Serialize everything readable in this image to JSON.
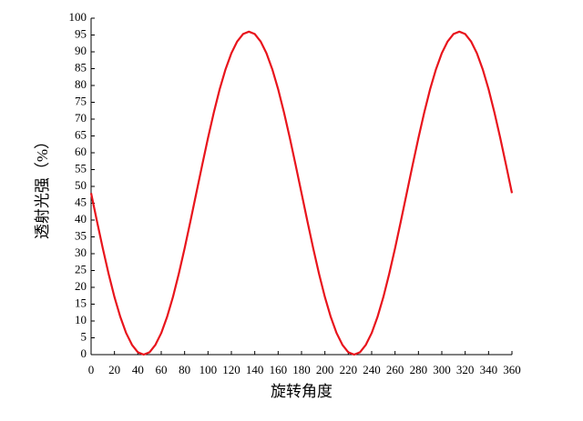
{
  "chart_data": {
    "type": "line",
    "x_label": "旋转角度",
    "y_label": "透射光强（%）",
    "x": [
      0,
      5,
      10,
      15,
      20,
      25,
      30,
      35,
      40,
      45,
      50,
      55,
      60,
      65,
      70,
      75,
      80,
      85,
      90,
      95,
      100,
      105,
      110,
      115,
      120,
      125,
      130,
      135,
      140,
      145,
      150,
      155,
      160,
      165,
      170,
      175,
      180,
      185,
      190,
      195,
      200,
      205,
      210,
      215,
      220,
      225,
      230,
      235,
      240,
      245,
      250,
      255,
      260,
      265,
      270,
      275,
      280,
      285,
      290,
      295,
      300,
      305,
      310,
      315,
      320,
      325,
      330,
      335,
      340,
      345,
      350,
      355,
      360
    ],
    "series": [
      {
        "color": "#e8141c",
        "values": [
          48,
          39.7,
          31.6,
          24,
          17.1,
          11.2,
          6.4,
          2.9,
          0.7,
          0,
          0.7,
          2.9,
          6.4,
          11.2,
          17.1,
          24,
          31.6,
          39.7,
          48,
          56.3,
          64.4,
          72,
          78.9,
          84.8,
          89.6,
          93.1,
          95.3,
          96,
          95.3,
          93.1,
          89.6,
          84.8,
          78.9,
          72,
          64.4,
          56.3,
          48,
          39.7,
          31.6,
          24,
          17.1,
          11.2,
          6.4,
          2.9,
          0.7,
          0,
          0.7,
          2.9,
          6.4,
          11.2,
          17.1,
          24,
          31.6,
          39.7,
          48,
          56.3,
          64.4,
          72,
          78.9,
          84.8,
          89.6,
          93.1,
          95.3,
          96,
          95.3,
          93.1,
          89.6,
          84.8,
          78.9,
          72,
          64.4,
          56.3,
          48
        ]
      }
    ],
    "xlim": [
      0,
      360
    ],
    "xticks": [
      0,
      20,
      40,
      60,
      80,
      100,
      120,
      140,
      160,
      180,
      200,
      220,
      240,
      260,
      280,
      300,
      320,
      340,
      360
    ],
    "ylim": [
      0,
      100
    ],
    "yticks": [
      0,
      5,
      10,
      15,
      20,
      25,
      30,
      35,
      40,
      45,
      50,
      55,
      60,
      65,
      70,
      75,
      80,
      85,
      90,
      95,
      100
    ]
  }
}
